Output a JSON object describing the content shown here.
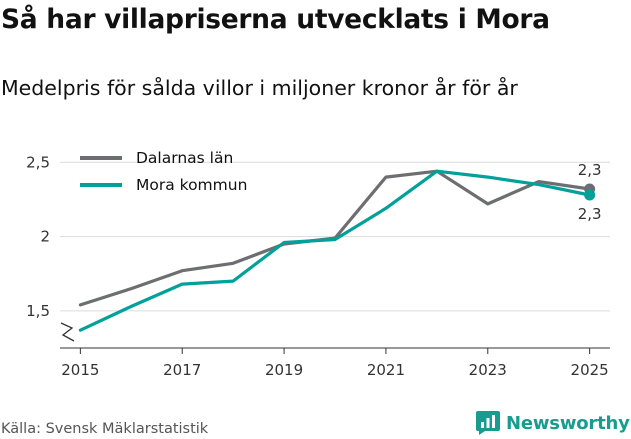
{
  "header": {
    "title": "Så har villapriserna utvecklats i Mora",
    "subtitle": "Medelpris för sålda villor i miljoner kronor år för år"
  },
  "footer": {
    "source": "Källa: Svensk Mäklarstatistik",
    "brand": "Newsworthy"
  },
  "colors": {
    "dalarna": "#6d6e71",
    "mora": "#00a19a",
    "brand": "#189c8f"
  },
  "chart_data": {
    "type": "line",
    "title": "Så har villapriserna utvecklats i Mora",
    "subtitle": "Medelpris för sålda villor i miljoner kronor år för år",
    "xlabel": "",
    "ylabel": "",
    "x": [
      2015,
      2016,
      2017,
      2018,
      2019,
      2020,
      2021,
      2022,
      2023,
      2024,
      2025
    ],
    "x_ticks": [
      "2015",
      "2017",
      "2019",
      "2021",
      "2023",
      "2025"
    ],
    "x_tick_values": [
      2015,
      2017,
      2019,
      2021,
      2023,
      2025
    ],
    "y_ticks": [
      "1,5",
      "2",
      "2,5"
    ],
    "y_tick_values": [
      1.5,
      2,
      2.5
    ],
    "ylim": [
      1.25,
      2.65
    ],
    "xlim": [
      2014.6,
      2025.4
    ],
    "axis_break": true,
    "grid": "horizontal",
    "legend_position": "top-left",
    "series": [
      {
        "name": "Dalarnas län",
        "color": "#6d6e71",
        "values": [
          1.54,
          1.65,
          1.77,
          1.82,
          1.95,
          1.99,
          2.4,
          2.44,
          2.22,
          2.37,
          2.32
        ],
        "end_label": "2,3"
      },
      {
        "name": "Mora kommun",
        "color": "#00a19a",
        "values": [
          1.37,
          1.53,
          1.68,
          1.7,
          1.96,
          1.98,
          2.19,
          2.44,
          2.4,
          2.35,
          2.28
        ],
        "end_label": "2,3"
      }
    ]
  }
}
